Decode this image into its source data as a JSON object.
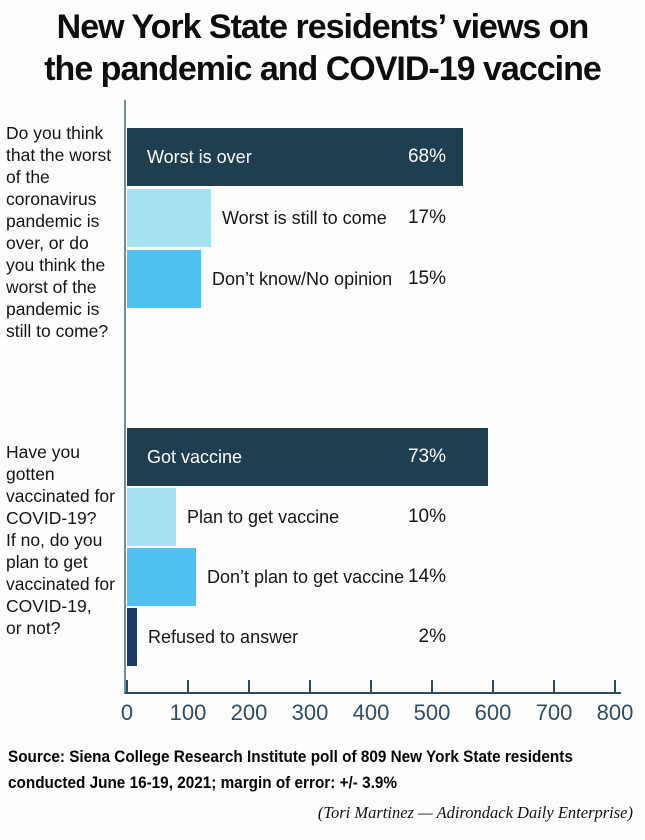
{
  "title": {
    "line1": "New York State residents’ views on",
    "line2": "the pandemic and COVID-19 vaccine"
  },
  "source": {
    "line1": "Source: Siena College Research Institute poll of 809 New York State residents",
    "line2": "conducted June 16-19, 2021; margin of error: +/- 3.9%"
  },
  "credit": "(Tori Martinez  —  Adirondack Daily Enterprise)",
  "colors": {
    "bar_dark_navy": "#1f3e50",
    "bar_light_blue": "#a5e0f3",
    "bar_mid_blue": "#4fc2f1",
    "bar_deep_navy": "#1b3a67",
    "axis_line": "#2e4a5f",
    "y_axis_line": "#6f8e9d",
    "tick_label": "#2f4d63"
  },
  "chart_data": {
    "type": "bar",
    "orientation": "horizontal",
    "x_axis": {
      "min": 0,
      "max": 800,
      "ticks": [
        0,
        100,
        200,
        300,
        400,
        500,
        600,
        700,
        800
      ]
    },
    "poll_size": 809,
    "groups": [
      {
        "question": "Do you think that the worst of the coronavirus pandemic is over, or do you think the worst of the pandemic is still to come?",
        "question_lines": [
          "Do you think",
          "that the worst",
          "of the",
          "coronavirus",
          "pandemic is",
          "over, or do",
          "you think the",
          "worst of the",
          "pandemic is",
          "still to come?"
        ],
        "bars": [
          {
            "label": "Worst is over",
            "pct_label": "68%",
            "percent": 68,
            "respondents": 550,
            "color": "bar_dark_navy",
            "label_inside": true
          },
          {
            "label": "Worst is still to come",
            "pct_label": "17%",
            "percent": 17,
            "respondents": 138,
            "color": "bar_light_blue",
            "label_inside": false
          },
          {
            "label": "Don’t know/No opinion",
            "pct_label": "15%",
            "percent": 15,
            "respondents": 121,
            "color": "bar_mid_blue",
            "label_inside": false
          }
        ]
      },
      {
        "question": "Have you gotten vaccinated for COVID-19? If no, do you plan to get vaccinated for COVID-19, or not?",
        "question_lines": [
          "Have you",
          "gotten",
          "vaccinated for",
          "COVID-19?",
          "If no, do you",
          "plan to get",
          "vaccinated for",
          "COVID-19,",
          "or not?"
        ],
        "bars": [
          {
            "label": "Got vaccine",
            "pct_label": "73%",
            "percent": 73,
            "respondents": 591,
            "color": "bar_dark_navy",
            "label_inside": true
          },
          {
            "label": "Plan to get vaccine",
            "pct_label": "10%",
            "percent": 10,
            "respondents": 81,
            "color": "bar_light_blue",
            "label_inside": false
          },
          {
            "label": "Don’t plan to get vaccine",
            "pct_label": "14%",
            "percent": 14,
            "respondents": 113,
            "color": "bar_mid_blue",
            "label_inside": false
          },
          {
            "label": "Refused to answer",
            "pct_label": "2%",
            "percent": 2,
            "respondents": 16,
            "color": "bar_deep_navy",
            "label_inside": false
          }
        ]
      }
    ]
  }
}
